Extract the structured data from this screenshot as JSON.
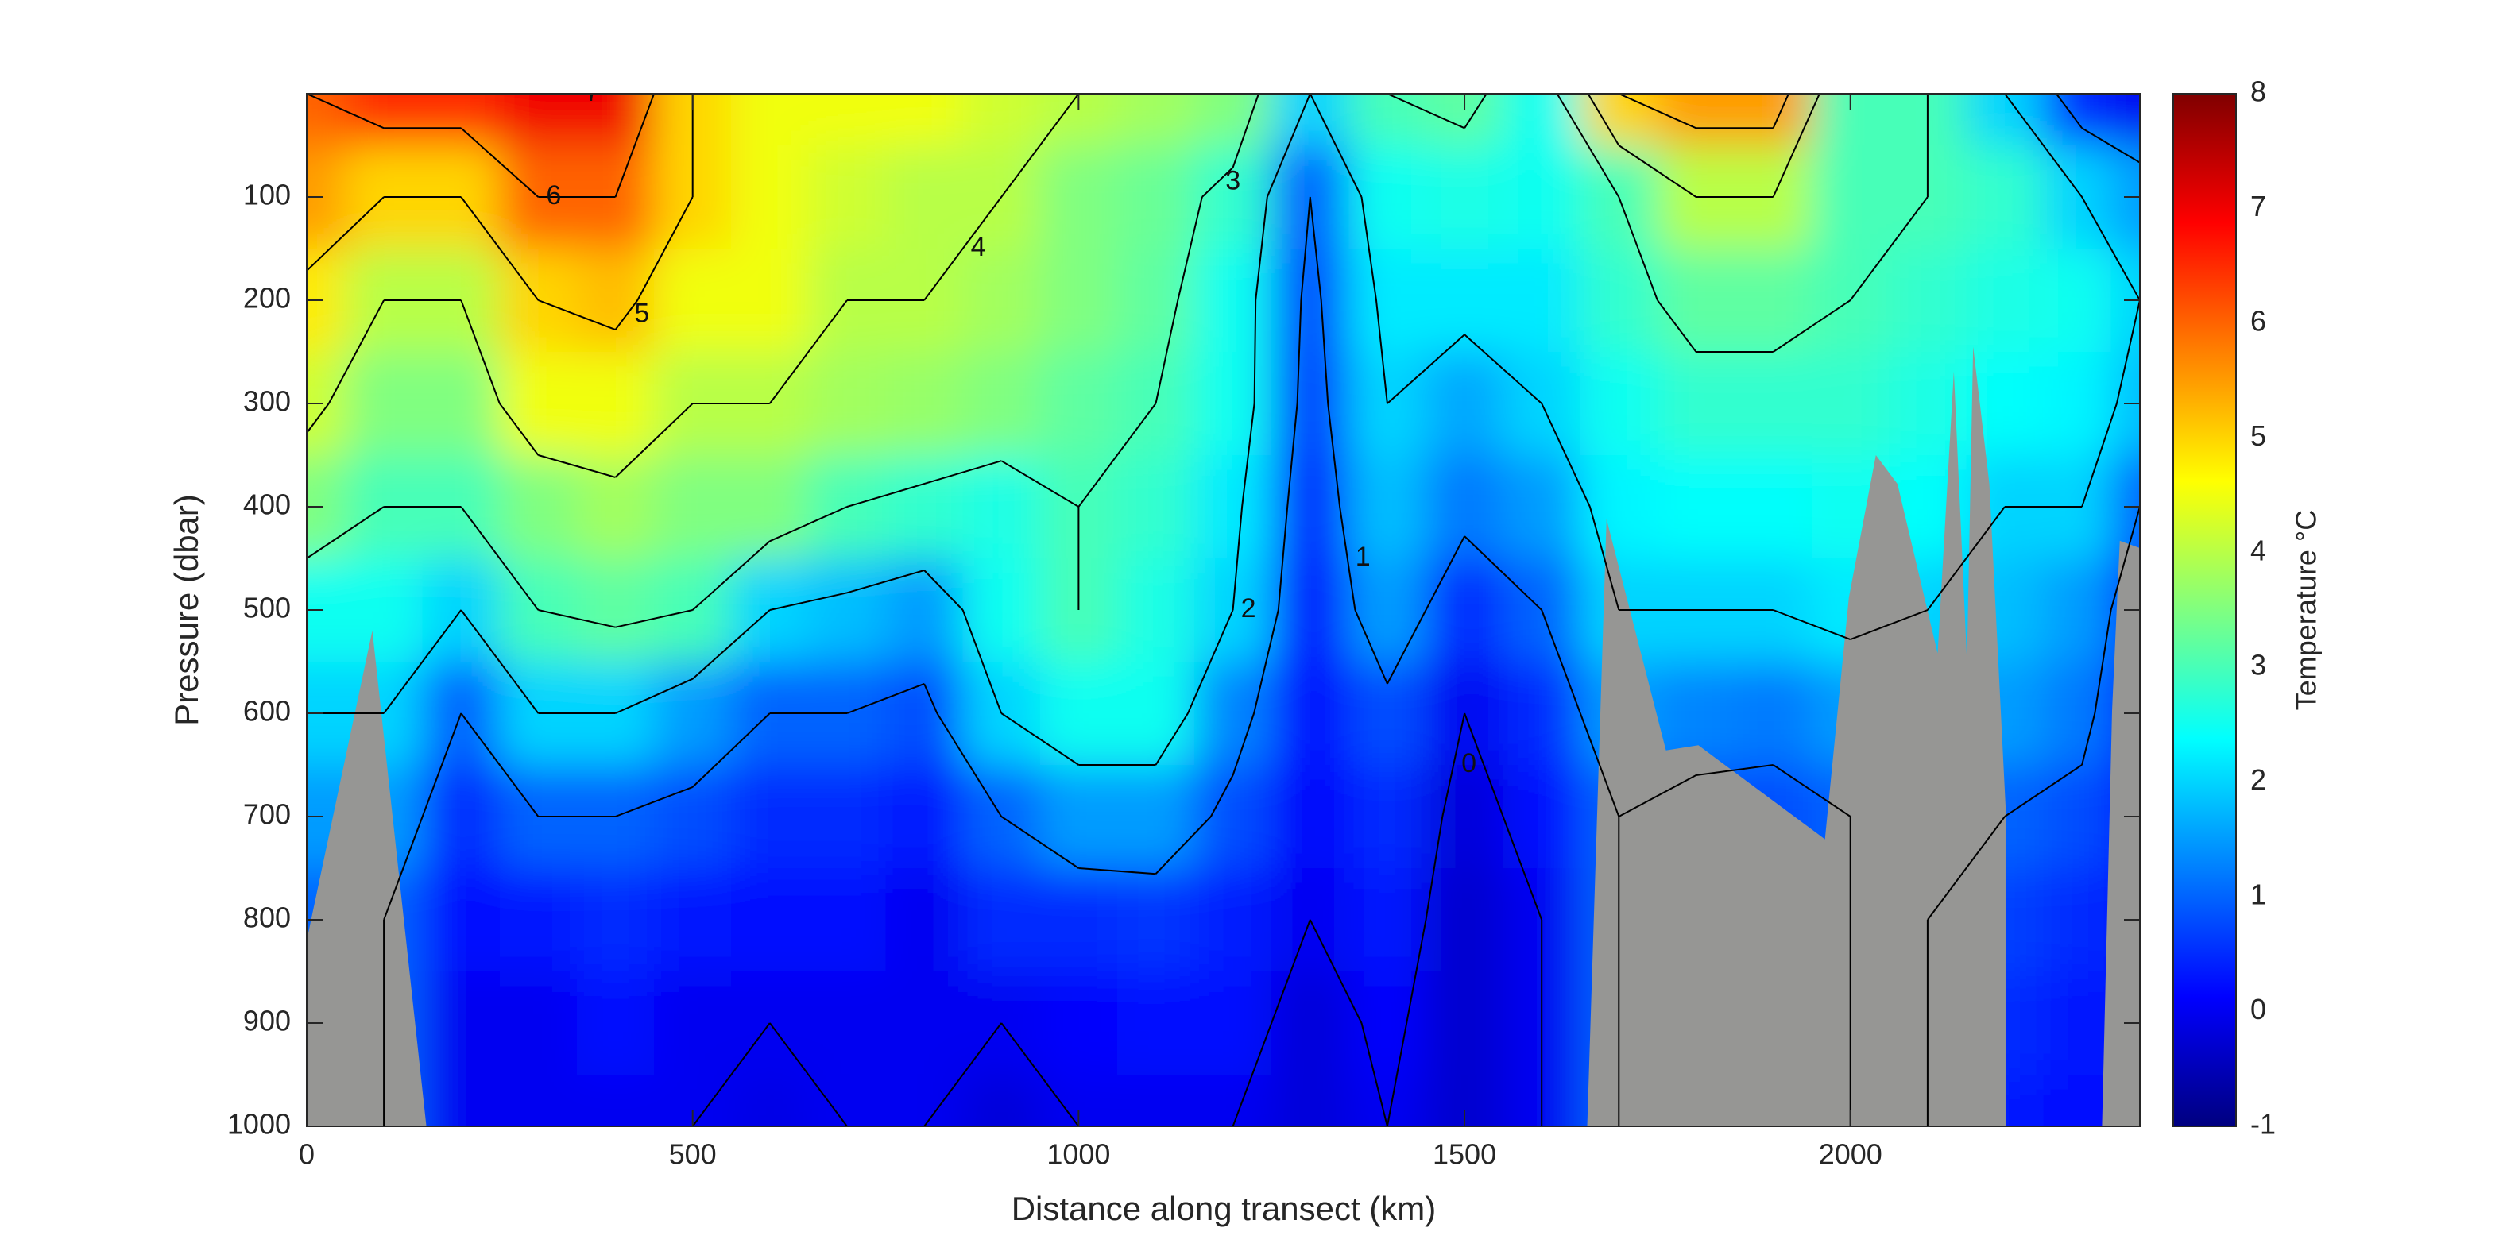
{
  "chart_data": {
    "type": "contour",
    "xlabel": "Distance along transect (km)",
    "ylabel": "Pressure (dbar)",
    "colorbar_label": "Temperature °C",
    "colormap": "jet",
    "x": [
      0,
      100,
      200,
      300,
      400,
      500,
      600,
      700,
      800,
      900,
      1000,
      1100,
      1200,
      1300,
      1400,
      1500,
      1600,
      1700,
      1800,
      1900,
      2000,
      2100,
      2200,
      2300,
      2375
    ],
    "pressure": [
      0,
      100,
      200,
      300,
      400,
      500,
      600,
      700,
      800,
      900,
      1000
    ],
    "values": [
      [
        6,
        5.5,
        4.8,
        4.2,
        3.5,
        2.5,
        2,
        1.5,
        1,
        1,
        1
      ],
      [
        6.5,
        5,
        4,
        3.5,
        3,
        2.5,
        2,
        1.5,
        1,
        1,
        1
      ],
      [
        6.5,
        5,
        4,
        3.5,
        3,
        2,
        1,
        0.5,
        0.2,
        0,
        0
      ],
      [
        7,
        6,
        5,
        4.5,
        3.5,
        3,
        2,
        1,
        0.3,
        0,
        0
      ],
      [
        7,
        6,
        5.2,
        4.5,
        3.8,
        3.2,
        2,
        1,
        0.5,
        0.2,
        0
      ],
      [
        5,
        5,
        4.5,
        4,
        3.5,
        3,
        1.5,
        0.8,
        0.3,
        0,
        0
      ],
      [
        4.5,
        4.5,
        4.5,
        4,
        3.5,
        2,
        1,
        0.5,
        0.2,
        0,
        -0.1
      ],
      [
        4.5,
        4.2,
        4,
        3.8,
        3,
        1.8,
        1,
        0.5,
        0.2,
        0,
        0
      ],
      [
        4.5,
        4,
        4,
        3.7,
        2.8,
        1.5,
        0.8,
        0.3,
        0,
        0,
        0
      ],
      [
        4.2,
        4,
        3.8,
        3.5,
        2.6,
        2.5,
        2,
        1,
        0.5,
        0,
        -0.2
      ],
      [
        4,
        3.5,
        3.5,
        3.2,
        3,
        3,
        2.5,
        1.5,
        0.5,
        0.1,
        0
      ],
      [
        3.8,
        3.3,
        3.2,
        3,
        2.8,
        2.6,
        2.5,
        1.5,
        0.6,
        0.2,
        0
      ],
      [
        3.5,
        2.8,
        2.5,
        2.5,
        2.2,
        2,
        1.3,
        0.8,
        0.4,
        0.2,
        0
      ],
      [
        2,
        1,
        0.8,
        0.7,
        0.5,
        0.3,
        0.2,
        0.1,
        0,
        -0.2,
        -0.2
      ],
      [
        3,
        2.5,
        2.2,
        2,
        1.8,
        1.5,
        0.8,
        0.5,
        0.3,
        0.1,
        0
      ],
      [
        3.2,
        2.6,
        2.2,
        1.6,
        1.2,
        0.5,
        0,
        -0.2,
        -0.3,
        -0.3,
        -0.3
      ],
      [
        2.5,
        2.5,
        2.2,
        2,
        1.5,
        1,
        0.5,
        0.2,
        0,
        0,
        0
      ],
      [
        5,
        3,
        2.8,
        2.5,
        2.3,
        2,
        1.5,
        1,
        1,
        1,
        1
      ],
      [
        5.5,
        4,
        3.2,
        2.8,
        2.4,
        2,
        1.3,
        0.8,
        0.8,
        0.8,
        0.8
      ],
      [
        5.5,
        4,
        3.2,
        2.8,
        2.4,
        2,
        1.2,
        0.8,
        0.8,
        0.8,
        0.8
      ],
      [
        3,
        3,
        3,
        2.8,
        2.5,
        2.2,
        1.5,
        1,
        1,
        1,
        1
      ],
      [
        3,
        3,
        2.8,
        2.6,
        2.4,
        2,
        1.5,
        1,
        1,
        1,
        1
      ],
      [
        2,
        2.8,
        2.6,
        2.4,
        2,
        1.8,
        1.5,
        1,
        0.7,
        0.5,
        0.3
      ],
      [
        0.5,
        2,
        2.5,
        2.3,
        2,
        1.5,
        1.2,
        0.8,
        0.5,
        0.3,
        0.2
      ],
      [
        0,
        1.5,
        2,
        1.8,
        1,
        0.5,
        0.3,
        0.3,
        0.3,
        0.3,
        0.3
      ]
    ],
    "contour_levels": [
      0,
      1,
      2,
      3,
      4,
      5,
      6,
      7
    ],
    "contour_color": "#000000",
    "bathymetry": [
      {
        "x": [
          0,
          85,
          155
        ],
        "pressure": [
          820,
          520,
          1000
        ]
      },
      {
        "x": [
          1659,
          1684,
          1761,
          1803,
          1967,
          1998,
          2033,
          2061,
          2113,
          2134,
          2151,
          2159,
          2180,
          2201,
          2201
        ],
        "pressure": [
          1000,
          412,
          636,
          631,
          722,
          488,
          350,
          378,
          542,
          269,
          550,
          245,
          378,
          690,
          1000
        ]
      },
      {
        "x": [
          2326,
          2339,
          2349,
          2375
        ],
        "pressure": [
          1000,
          597,
          433,
          440
        ]
      }
    ],
    "bathymetry_color": "#969694",
    "xlim": [
      0,
      2375
    ],
    "ylim": [
      0,
      1000
    ],
    "y_reversed": true,
    "xticks": [
      0,
      500,
      1000,
      1500,
      2000
    ],
    "yticks": [
      100,
      200,
      300,
      400,
      500,
      600,
      700,
      800,
      900,
      1000
    ],
    "clim": [
      -1,
      8
    ],
    "cticks": [
      -1,
      0,
      1,
      2,
      3,
      4,
      5,
      6,
      7,
      8
    ]
  }
}
